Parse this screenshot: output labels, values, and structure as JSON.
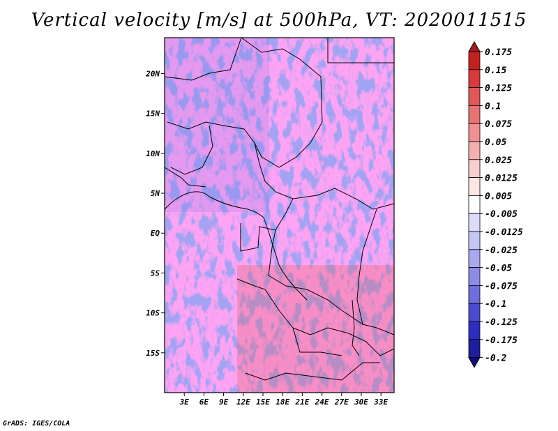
{
  "title": "Vertical velocity [m/s] at 500hPa, VT: 2020011515",
  "footer": "GrADS: IGES/COLA",
  "chart_data": {
    "type": "heatmap",
    "title": "Vertical velocity [m/s] at 500hPa, VT: 2020011515",
    "variable": "Vertical velocity",
    "units": "m/s",
    "level": "500hPa",
    "valid_time": "2020011515",
    "xlim": [
      0,
      35
    ],
    "ylim": [
      -20,
      24.5
    ],
    "x_ticks": [
      {
        "value": 3,
        "label": "3E"
      },
      {
        "value": 6,
        "label": "6E"
      },
      {
        "value": 9,
        "label": "9E"
      },
      {
        "value": 12,
        "label": "12E"
      },
      {
        "value": 15,
        "label": "15E"
      },
      {
        "value": 18,
        "label": "18E"
      },
      {
        "value": 21,
        "label": "21E"
      },
      {
        "value": 24,
        "label": "24E"
      },
      {
        "value": 27,
        "label": "27E"
      },
      {
        "value": 30,
        "label": "30E"
      },
      {
        "value": 33,
        "label": "33E"
      }
    ],
    "y_ticks": [
      {
        "value": 20,
        "label": "20N"
      },
      {
        "value": 15,
        "label": "15N"
      },
      {
        "value": 10,
        "label": "10N"
      },
      {
        "value": 5,
        "label": "5N"
      },
      {
        "value": 0,
        "label": "EQ"
      },
      {
        "value": -5,
        "label": "5S"
      },
      {
        "value": -10,
        "label": "10S"
      },
      {
        "value": -15,
        "label": "15S"
      }
    ],
    "colorbar": {
      "labels": [
        "0.175",
        "0.15",
        "0.125",
        "0.1",
        "0.075",
        "0.05",
        "0.025",
        "0.0125",
        "0.005",
        "-0.005",
        "-0.0125",
        "-0.025",
        "-0.05",
        "-0.075",
        "-0.1",
        "-0.125",
        "-0.175",
        "-0.2"
      ],
      "colors": [
        "#a51a1a",
        "#c42020",
        "#d8393a",
        "#e25757",
        "#e97373",
        "#f09090",
        "#f4b0ae",
        "#f8cfcc",
        "#fbe6e4",
        "#ffffff",
        "#dcdcfa",
        "#c6c6f4",
        "#a9a9f0",
        "#8c8ce8",
        "#6e6ede",
        "#4b4bd2",
        "#2d2dc0",
        "#1e1e9e",
        "#0e0e7a"
      ]
    }
  }
}
